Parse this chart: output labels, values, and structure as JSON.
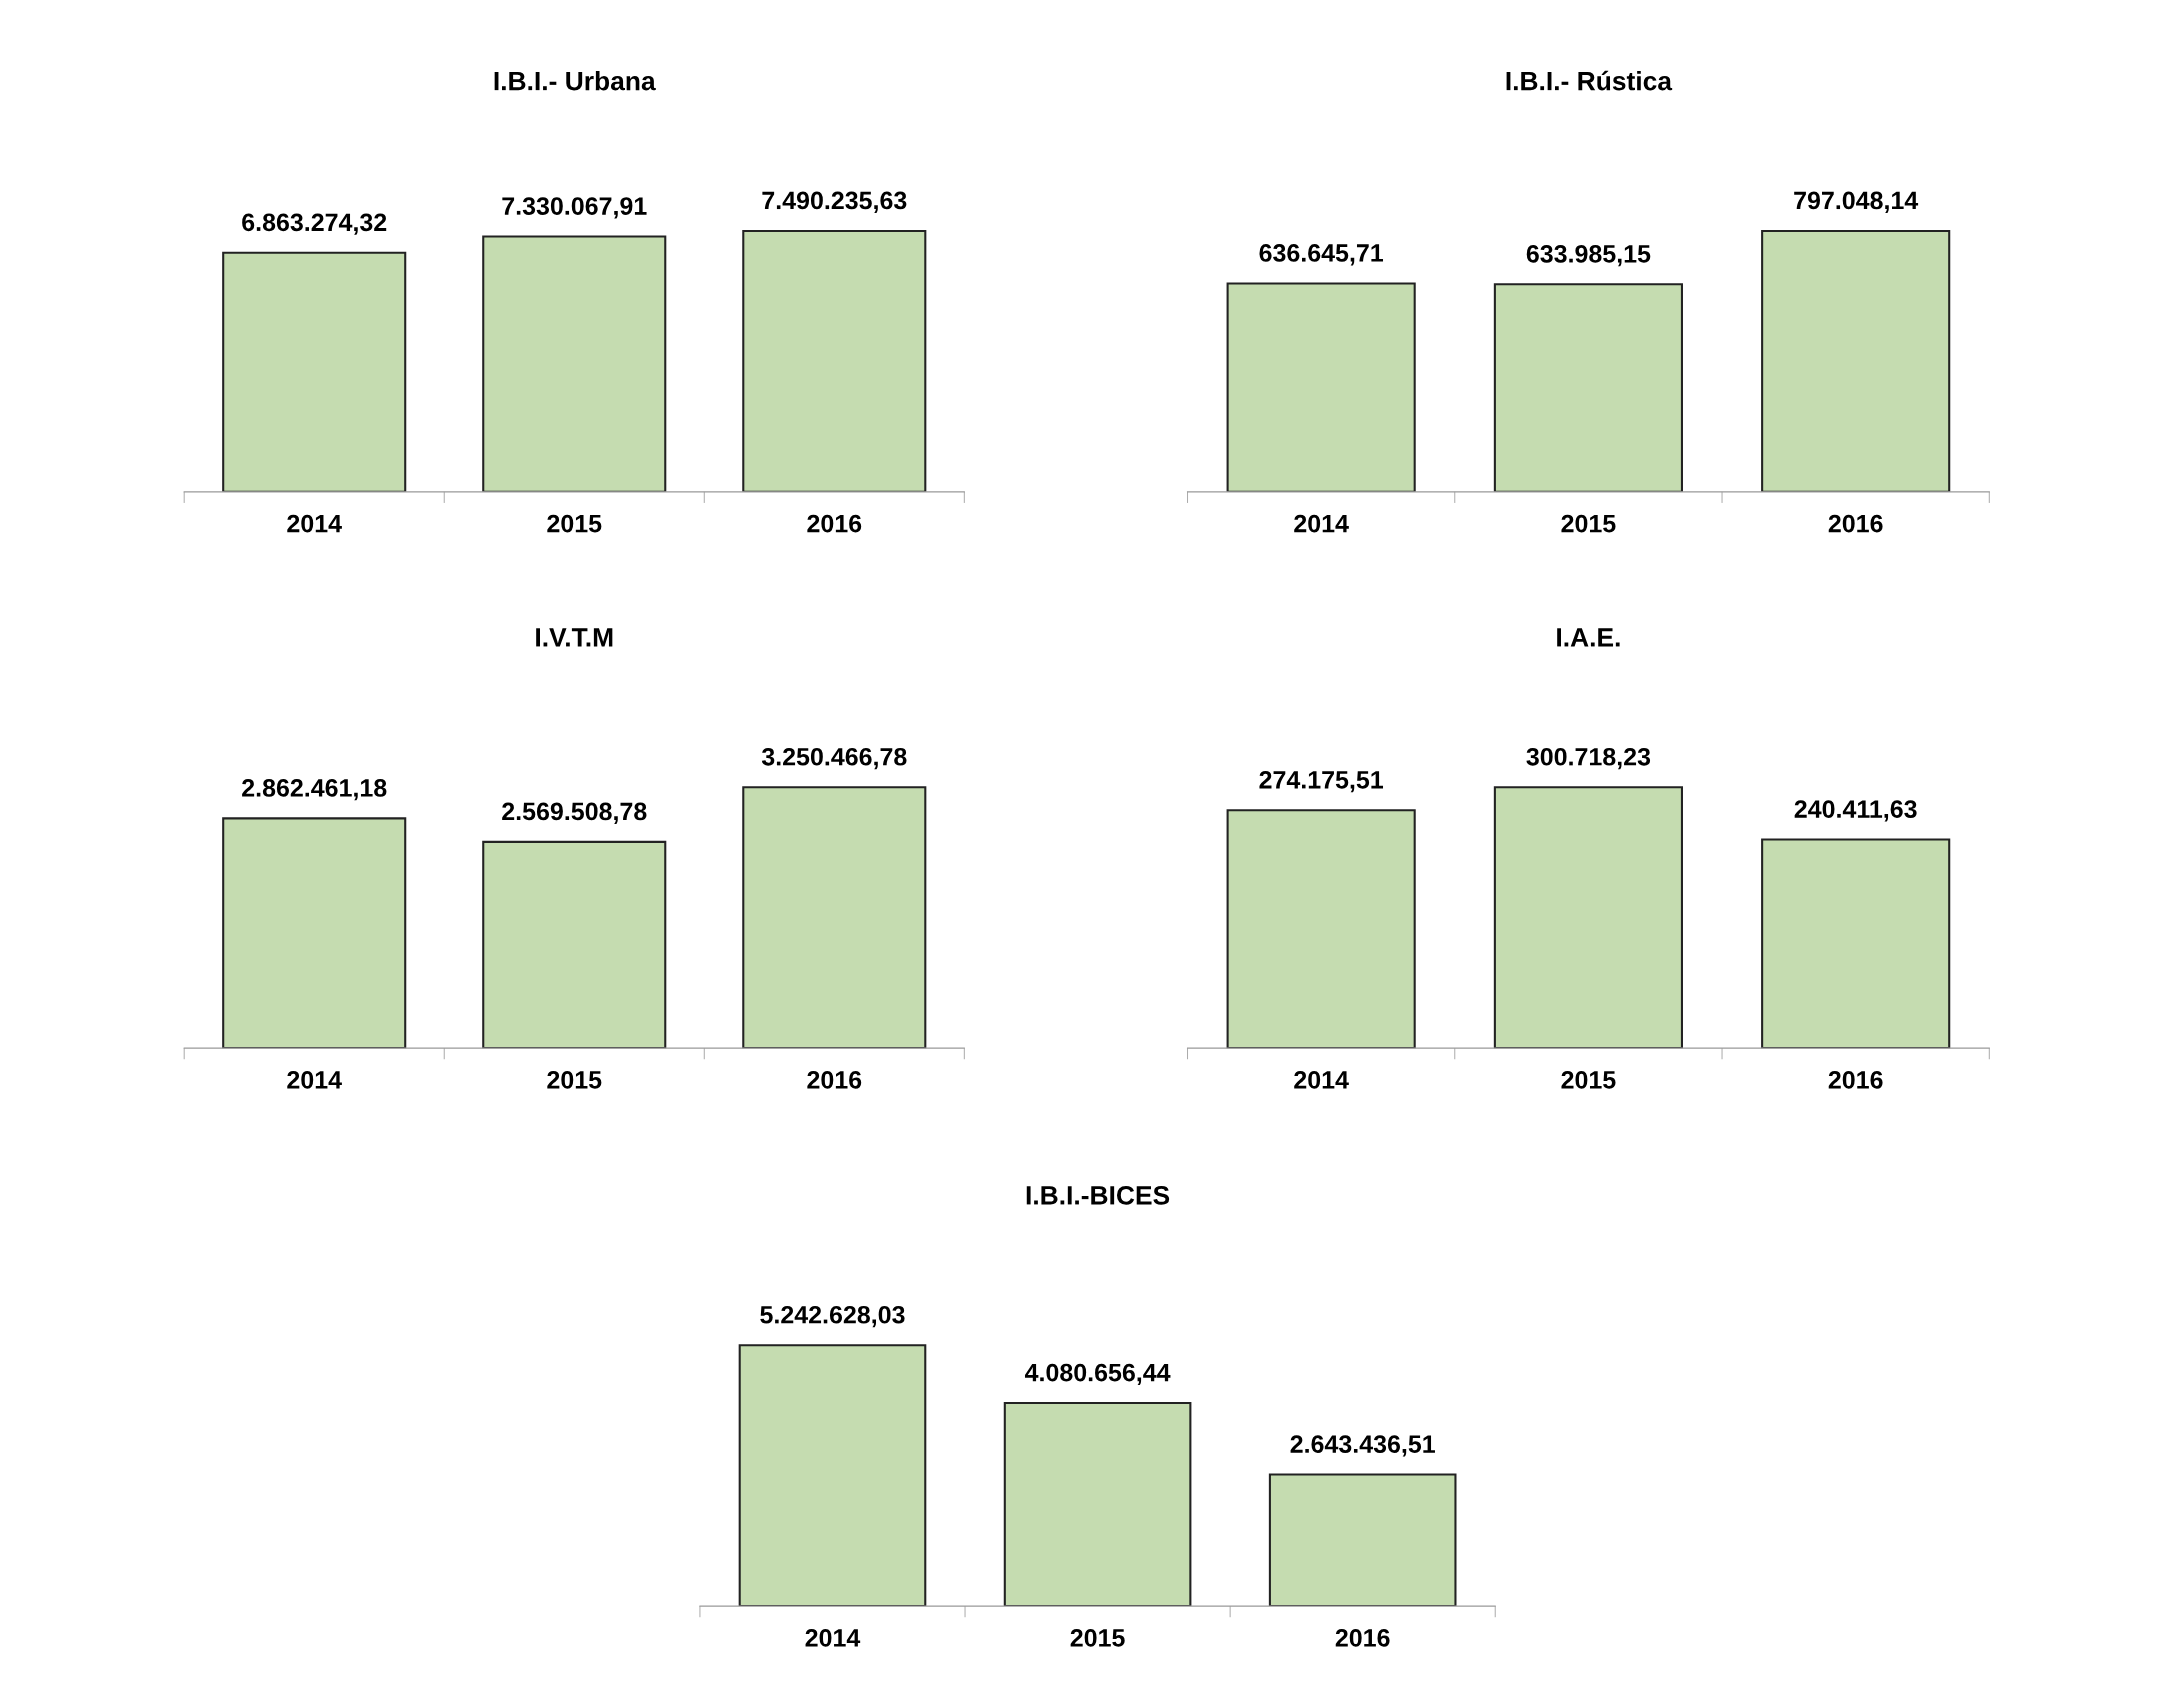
{
  "chart_data": [
    {
      "type": "bar",
      "title": "I.B.I.- Urbana",
      "categories": [
        "2014",
        "2015",
        "2016"
      ],
      "values": [
        6863274.32,
        7330067.91,
        7490235.63
      ],
      "value_labels": [
        "6.863.274,32",
        "7.330.067,91",
        "7.490.235,63"
      ],
      "color": "#c5dcb0"
    },
    {
      "type": "bar",
      "title": "I.B.I.- Rústica",
      "categories": [
        "2014",
        "2015",
        "2016"
      ],
      "values": [
        636645.71,
        633985.15,
        797048.14
      ],
      "value_labels": [
        "636.645,71",
        "633.985,15",
        "797.048,14"
      ],
      "color": "#c5dcb0"
    },
    {
      "type": "bar",
      "title": "I.V.T.M",
      "categories": [
        "2014",
        "2015",
        "2016"
      ],
      "values": [
        2862461.18,
        2569508.78,
        3250466.78
      ],
      "value_labels": [
        "2.862.461,18",
        "2.569.508,78",
        "3.250.466,78"
      ],
      "color": "#c5dcb0"
    },
    {
      "type": "bar",
      "title": "I.A.E.",
      "categories": [
        "2014",
        "2015",
        "2016"
      ],
      "values": [
        274175.51,
        300718.23,
        240411.63
      ],
      "value_labels": [
        "274.175,51",
        "300.718,23",
        "240.411,63"
      ],
      "color": "#c5dcb0"
    },
    {
      "type": "bar",
      "title": "I.B.I.-BICES",
      "categories": [
        "2014",
        "2015",
        "2016"
      ],
      "values": [
        5242628.03,
        4080656.44,
        2643436.51
      ],
      "value_labels": [
        "5.242.628,03",
        "4.080.656,44",
        "2.643.436,51"
      ],
      "color": "#c5dcb0"
    }
  ]
}
